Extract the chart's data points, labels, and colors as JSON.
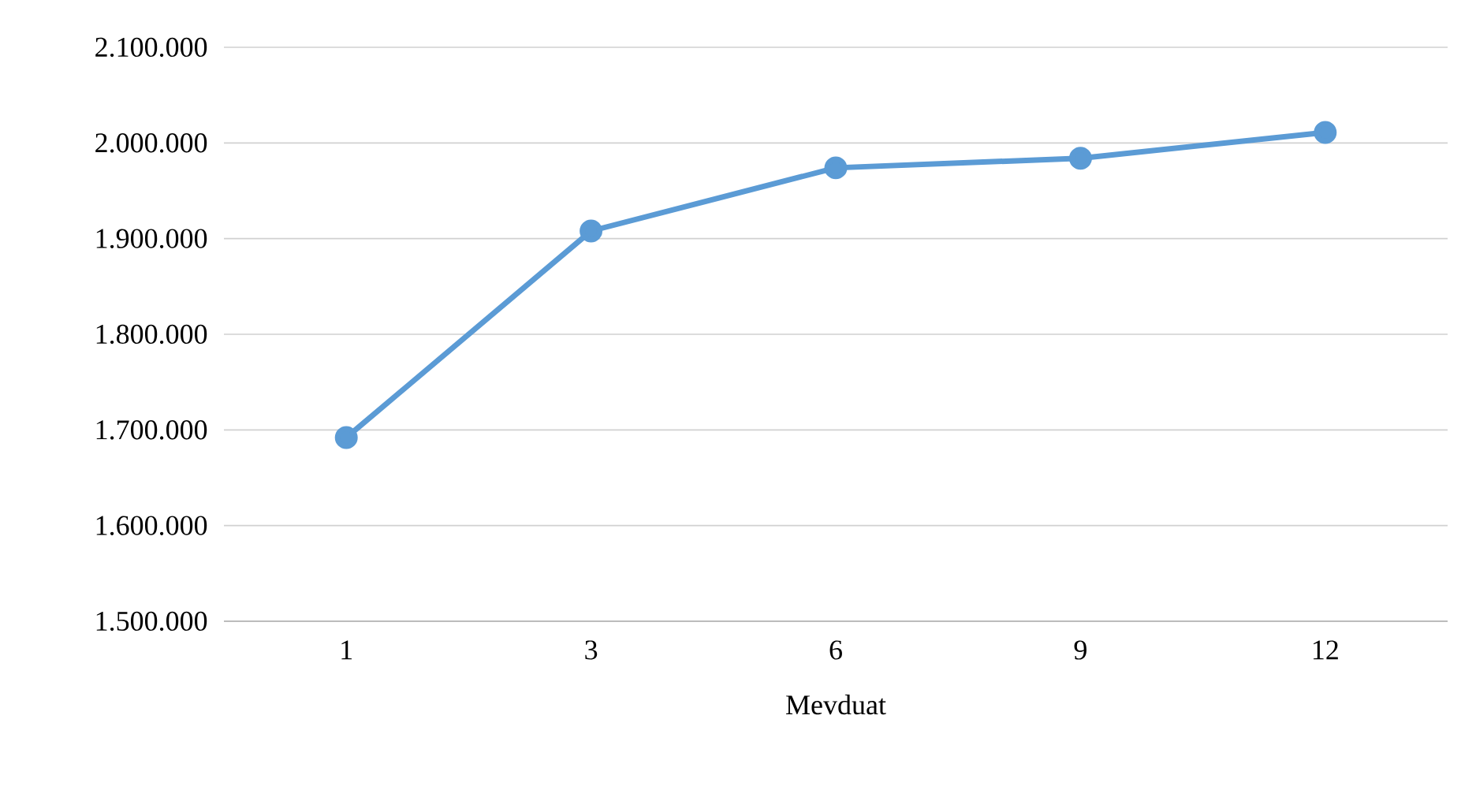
{
  "chart_data": {
    "type": "line",
    "xlabel": "Mevduat",
    "categories": [
      "1",
      "3",
      "6",
      "9",
      "12"
    ],
    "series": [
      {
        "color": "#5b9bd5",
        "values": [
          1692000,
          1908000,
          1974000,
          1984000,
          2011000
        ]
      }
    ],
    "ylim": [
      1500000,
      2100000
    ],
    "yticks": [
      {
        "value": 1500000,
        "label": "1.500.000"
      },
      {
        "value": 1600000,
        "label": "1.600.000"
      },
      {
        "value": 1700000,
        "label": "1.700.000"
      },
      {
        "value": 1800000,
        "label": "1.800.000"
      },
      {
        "value": 1900000,
        "label": "1.900.000"
      },
      {
        "value": 2000000,
        "label": "2.000.000"
      },
      {
        "value": 2100000,
        "label": "2.100.000"
      }
    ],
    "grid": "y",
    "marker": "circle",
    "line_style": "solid"
  }
}
